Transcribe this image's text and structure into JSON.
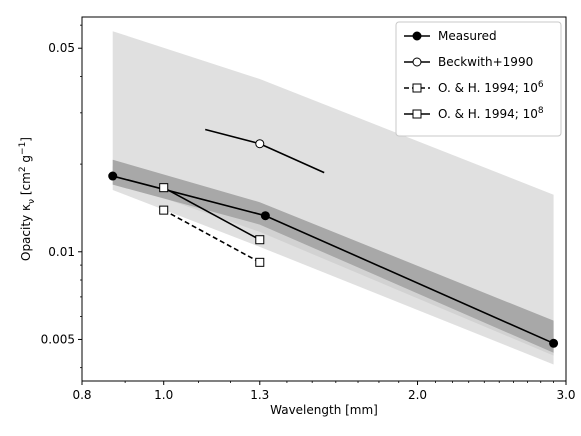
{
  "chart_data": {
    "type": "line",
    "xlabel": "Wavelength [mm]",
    "ylabel": "Opacity κ",
    "ylabel_sub": "ν",
    "ylabel_unit_open": " [cm",
    "ylabel_unit_exp1": "2",
    "ylabel_unit_mid": " g",
    "ylabel_unit_exp2": "−1",
    "ylabel_unit_close": "]",
    "x_scale": "log",
    "y_scale": "log",
    "xlim": [
      0.8,
      3.0
    ],
    "ylim": [
      0.0036,
      0.064
    ],
    "x_ticks": [
      {
        "value": 0.8,
        "label": "0.8"
      },
      {
        "value": 1.0,
        "label": "1.0"
      },
      {
        "value": 1.3,
        "label": "1.3"
      },
      {
        "value": 2.0,
        "label": "2.0"
      },
      {
        "value": 3.0,
        "label": "3.0"
      }
    ],
    "y_ticks": [
      {
        "value": 0.005,
        "label": "0.005"
      },
      {
        "value": 0.01,
        "label": "0.01"
      },
      {
        "value": 0.05,
        "label": "0.05"
      }
    ],
    "legend_position": "top-right",
    "bands": [
      {
        "x": [
          0.87,
          1.3,
          2.9
        ],
        "low": [
          0.0163,
          0.0104,
          0.0041
        ],
        "high": [
          0.0572,
          0.0392,
          0.0157
        ],
        "color": "#e0e0e0"
      },
      {
        "x": [
          0.87,
          1.3,
          2.9
        ],
        "low": [
          0.0176,
          0.0117,
          0.0044
        ],
        "high": [
          0.0197,
          0.014,
          0.0052
        ],
        "color": "#d2d2d2"
      },
      {
        "x": [
          0.87,
          1.3,
          2.9
        ],
        "low": [
          0.017,
          0.0124,
          0.0045
        ],
        "high": [
          0.0207,
          0.0148,
          0.0058
        ],
        "color": "#a8a8a8"
      }
    ],
    "series": [
      {
        "name": "Measured",
        "x": [
          0.87,
          1.32,
          2.9
        ],
        "y": [
          0.0182,
          0.0133,
          0.00485
        ],
        "marker": "filled-circle",
        "dashed": false
      },
      {
        "name": "Beckwith+1990",
        "x": [
          1.12,
          1.3,
          1.55
        ],
        "y": [
          0.0263,
          0.0235,
          0.0187
        ],
        "marker_points": [
          1
        ],
        "marker": "open-circle",
        "dashed": false
      },
      {
        "name": "O. & H. 1994; 10",
        "name_sup": "6",
        "x": [
          1.0,
          1.3
        ],
        "y": [
          0.0139,
          0.0092
        ],
        "marker": "open-square",
        "dashed": true
      },
      {
        "name": "O. & H. 1994; 10",
        "name_sup": "8",
        "x": [
          1.0,
          1.3
        ],
        "y": [
          0.0166,
          0.011
        ],
        "marker": "open-square",
        "dashed": false
      }
    ]
  }
}
